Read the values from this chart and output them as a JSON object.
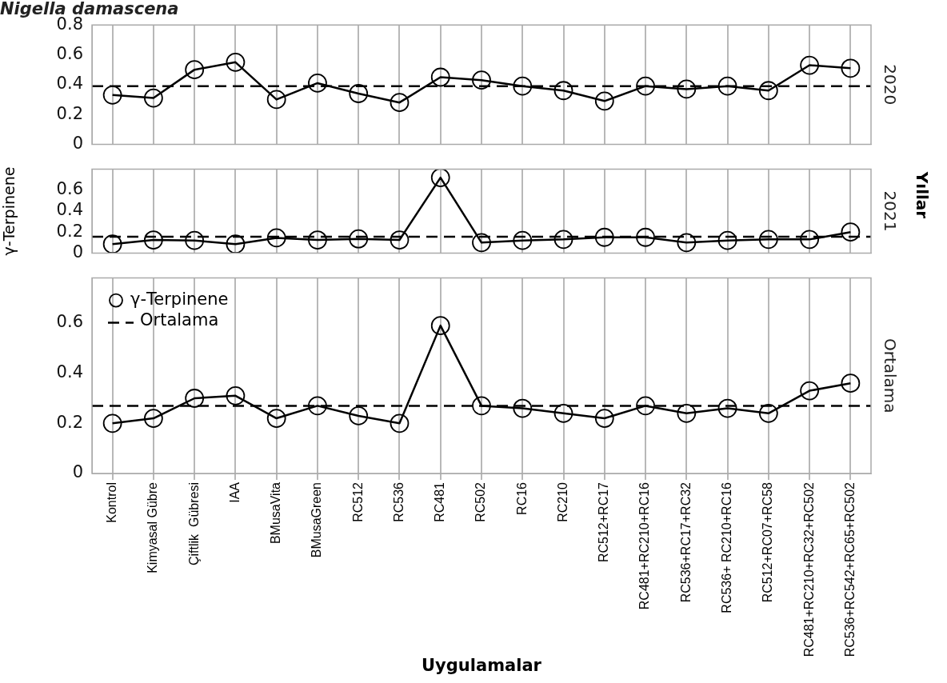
{
  "chart_data": [
    {
      "type": "line",
      "title": "Nigella damascena",
      "y2label": "2020",
      "categories": [
        null,
        null,
        null,
        null,
        null,
        null,
        null,
        null,
        null,
        null,
        null,
        null,
        null,
        null,
        null,
        null,
        null,
        null,
        null
      ],
      "series": [
        {
          "color": "#000000",
          "values": [
            0.33,
            0.31,
            0.5,
            0.55,
            0.3,
            0.41,
            0.34,
            0.28,
            0.45,
            0.43,
            0.39,
            0.36,
            0.29,
            0.39,
            0.37,
            0.39,
            0.36,
            0.53,
            0.51
          ]
        }
      ],
      "ref_lines": [
        {
          "axis": "y",
          "value": 0.39,
          "line_style": "dashed",
          "color": "#000000"
        }
      ],
      "ylim": [
        0,
        0.8
      ],
      "yticks": [
        0,
        0.2,
        0.4,
        0.6,
        0.8
      ],
      "grid": "x",
      "marker": "circle",
      "tick_labels": "y"
    },
    {
      "type": "line",
      "ylabel": "γ-Terpinene",
      "y2label": "2021",
      "annotations": [
        "Yıllar"
      ],
      "categories": [
        null,
        null,
        null,
        null,
        null,
        null,
        null,
        null,
        null,
        null,
        null,
        null,
        null,
        null,
        null,
        null,
        null,
        null,
        null
      ],
      "series": [
        {
          "color": "#000000",
          "values": [
            0.085,
            0.125,
            0.12,
            0.085,
            0.145,
            0.125,
            0.135,
            0.125,
            0.72,
            0.1,
            0.12,
            0.13,
            0.15,
            0.15,
            0.1,
            0.12,
            0.13,
            0.13,
            0.2
          ]
        }
      ],
      "ref_lines": [
        {
          "axis": "y",
          "value": 0.155,
          "line_style": "dashed",
          "color": "#000000"
        }
      ],
      "ylim": [
        0,
        0.8
      ],
      "yticks": [
        0,
        0.2,
        0.4,
        0.6
      ],
      "grid": "x",
      "marker": "circle",
      "tick_labels": "y"
    },
    {
      "type": "line",
      "xlabel": "Uygulamalar",
      "y2label": "Ortalama",
      "legend": "top left",
      "categories": [
        "Kontrol",
        "Kimyasal Gübre",
        "Çiftlik  Gübresi",
        "IAA",
        "BMusaVita",
        "BMusaGreen",
        "RC512",
        "RC536",
        "RC481",
        "RC502",
        "RC16",
        "RC210",
        "RC512+RC17",
        "RC481+RC210+RC16",
        "RC536+RC17+RC32",
        "RC536+ RC210+RC16",
        "RC512+RC07+RC58",
        "RC481+RC210+RC32+RC502",
        "RC536+RC542+RC65+RC502"
      ],
      "series": [
        {
          "name": "γ-Terpinene",
          "color": "#000000",
          "values": [
            0.2,
            0.22,
            0.3,
            0.31,
            0.22,
            0.27,
            0.23,
            0.2,
            0.59,
            0.27,
            0.26,
            0.24,
            0.22,
            0.27,
            0.24,
            0.26,
            0.24,
            0.33,
            0.36
          ]
        }
      ],
      "ref_lines": [
        {
          "axis": "y",
          "value": 0.27,
          "label": "Ortalama",
          "line_style": "dashed",
          "color": "#000000"
        }
      ],
      "ylim": [
        0,
        0.78
      ],
      "yticks": [
        0,
        0.2,
        0.4,
        0.6
      ],
      "grid": "x",
      "marker": "circle"
    }
  ]
}
